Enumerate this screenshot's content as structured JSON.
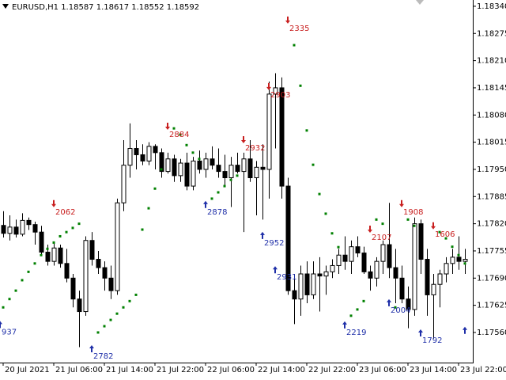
{
  "chart_data": {
    "type": "candlestick",
    "title": "EURUSD,H1 1.18587 1.18617 1.18552 1.18592",
    "up_color": "#ffffff",
    "down_color": "#000000",
    "sar_color": "#008000",
    "sell_color": "#c81e1e",
    "buy_color": "#1f2fa8",
    "xlim": [
      -0.5,
      74.25
    ],
    "xticks": [
      {
        "value": 0,
        "label": "20 Jul 2021"
      },
      {
        "value": 8,
        "label": "21 Jul 06:00"
      },
      {
        "value": 16,
        "label": "21 Jul 14:00"
      },
      {
        "value": 24,
        "label": "21 Jul 22:00"
      },
      {
        "value": 32,
        "label": "22 Jul 06:00"
      },
      {
        "value": 40,
        "label": "22 Jul 14:00"
      },
      {
        "value": 48,
        "label": "22 Jul 22:00"
      },
      {
        "value": 56,
        "label": "23 Jul 06:00"
      },
      {
        "value": 64,
        "label": "23 Jul 14:00"
      },
      {
        "value": 72,
        "label": "23 Jul 22:00"
      }
    ],
    "ylim": [
      1.17488,
      1.18355
    ],
    "yticks": [
      {
        "value": 1.1834,
        "label": "1.18340"
      },
      {
        "value": 1.18275,
        "label": "1.18275"
      },
      {
        "value": 1.1821,
        "label": "1.18210"
      },
      {
        "value": 1.18145,
        "label": "1.18145"
      },
      {
        "value": 1.1808,
        "label": "1.18080"
      },
      {
        "value": 1.18015,
        "label": "1.18015"
      },
      {
        "value": 1.1795,
        "label": "1.17950"
      },
      {
        "value": 1.17885,
        "label": "1.17885"
      },
      {
        "value": 1.1782,
        "label": "1.17820"
      },
      {
        "value": 1.17755,
        "label": "1.17755"
      },
      {
        "value": 1.1769,
        "label": "1.17690"
      },
      {
        "value": 1.17625,
        "label": "1.17625"
      },
      {
        "value": 1.1756,
        "label": "1.17560"
      }
    ],
    "open": [
      1.17816,
      1.17797,
      1.17812,
      1.17795,
      1.17828,
      1.17818,
      1.178,
      1.17752,
      1.1773,
      1.17762,
      1.17725,
      1.1769,
      1.1764,
      1.1761,
      1.1778,
      1.17735,
      1.17715,
      1.1769,
      1.1766,
      1.1787,
      1.1796,
      1.18,
      1.17985,
      1.1797,
      1.18005,
      1.1799,
      1.17945,
      1.17975,
      1.17935,
      1.17965,
      1.1791,
      1.1797,
      1.1795,
      1.17975,
      1.1796,
      1.17945,
      1.1793,
      1.1796,
      1.17945,
      1.17975,
      1.1793,
      1.17955,
      1.1795,
      1.1813,
      1.18145,
      1.1791,
      1.1766,
      1.1764,
      1.177,
      1.1765,
      1.177,
      1.17695,
      1.17705,
      1.1772,
      1.17745,
      1.1773,
      1.17765,
      1.1775,
      1.17705,
      1.1769,
      1.1773,
      1.1777,
      1.17715,
      1.1769,
      1.1764,
      1.17615,
      1.1782,
      1.17735,
      1.1765,
      1.17675,
      1.177,
      1.17725,
      1.1774,
      1.1773
    ],
    "high": [
      1.1785,
      1.1784,
      1.1783,
      1.17845,
      1.17835,
      1.17825,
      1.17815,
      1.1777,
      1.17775,
      1.1777,
      1.1776,
      1.177,
      1.1766,
      1.1779,
      1.178,
      1.17755,
      1.1773,
      1.1772,
      1.1788,
      1.1802,
      1.1806,
      1.1802,
      1.1801,
      1.18015,
      1.1801,
      1.18,
      1.1799,
      1.17985,
      1.17975,
      1.1799,
      1.1798,
      1.17995,
      1.1799,
      1.18005,
      1.18,
      1.17985,
      1.1798,
      1.1799,
      1.1799,
      1.1802,
      1.1797,
      1.1801,
      1.1816,
      1.1818,
      1.1817,
      1.1793,
      1.177,
      1.1772,
      1.1773,
      1.1773,
      1.1774,
      1.1772,
      1.17735,
      1.1776,
      1.1779,
      1.1778,
      1.1779,
      1.17765,
      1.1772,
      1.1774,
      1.1778,
      1.1787,
      1.1776,
      1.1772,
      1.1767,
      1.17835,
      1.1783,
      1.1776,
      1.177,
      1.1771,
      1.1774,
      1.1776,
      1.1779,
      1.1776
    ],
    "low": [
      1.17787,
      1.1778,
      1.17787,
      1.1779,
      1.17805,
      1.1777,
      1.17745,
      1.1772,
      1.1772,
      1.17715,
      1.1768,
      1.1762,
      1.17525,
      1.176,
      1.1772,
      1.177,
      1.1766,
      1.1764,
      1.1765,
      1.1785,
      1.1793,
      1.1795,
      1.1796,
      1.1796,
      1.1795,
      1.1793,
      1.1794,
      1.1792,
      1.1792,
      1.179,
      1.179,
      1.1794,
      1.1793,
      1.1795,
      1.1793,
      1.1791,
      1.1786,
      1.1794,
      1.178,
      1.1792,
      1.1784,
      1.1783,
      1.1788,
      1.18,
      1.1788,
      1.1765,
      1.1758,
      1.176,
      1.1763,
      1.1764,
      1.1761,
      1.1765,
      1.1769,
      1.177,
      1.1771,
      1.177,
      1.1774,
      1.177,
      1.1766,
      1.1767,
      1.177,
      1.1769,
      1.1763,
      1.1763,
      1.1757,
      1.176,
      1.177,
      1.176,
      1.17545,
      1.1762,
      1.1768,
      1.177,
      1.1771,
      1.177
    ],
    "close": [
      1.17797,
      1.17812,
      1.17795,
      1.17828,
      1.17818,
      1.178,
      1.17752,
      1.1773,
      1.17762,
      1.17725,
      1.1769,
      1.1764,
      1.1761,
      1.1778,
      1.17735,
      1.17715,
      1.1769,
      1.1766,
      1.1787,
      1.1796,
      1.18,
      1.17985,
      1.1797,
      1.18005,
      1.1799,
      1.17945,
      1.17975,
      1.17935,
      1.17965,
      1.1791,
      1.1797,
      1.1795,
      1.17975,
      1.1796,
      1.17945,
      1.1793,
      1.1796,
      1.17945,
      1.17975,
      1.1793,
      1.17955,
      1.1795,
      1.1813,
      1.18145,
      1.1791,
      1.1766,
      1.1764,
      1.177,
      1.1765,
      1.177,
      1.17695,
      1.17705,
      1.1772,
      1.17745,
      1.1773,
      1.17765,
      1.1775,
      1.17705,
      1.1769,
      1.1773,
      1.1777,
      1.17715,
      1.1769,
      1.1764,
      1.17615,
      1.1782,
      1.17735,
      1.1765,
      1.17675,
      1.177,
      1.17725,
      1.1774,
      1.1773,
      1.17735
    ],
    "sar": [
      1.1762,
      1.1764,
      1.1766,
      1.17685,
      1.17705,
      1.17725,
      1.17745,
      1.1776,
      1.17775,
      1.1779,
      1.178,
      1.1781,
      1.1782,
      null,
      null,
      1.1756,
      1.17575,
      1.1759,
      1.17605,
      1.1762,
      1.17635,
      1.1765,
      1.17806,
      1.17857,
      1.17904,
      1.1795,
      null,
      1.18048,
      1.18033,
      1.18008,
      1.1799,
      1.17975,
      null,
      1.1788,
      1.17895,
      1.1791,
      1.17925,
      1.17935,
      null,
      null,
      null,
      null,
      null,
      null,
      null,
      null,
      1.18247,
      1.1815,
      1.18043,
      1.17961,
      1.17891,
      1.17844,
      1.17797,
      1.17764,
      null,
      1.176,
      1.17615,
      1.17635,
      null,
      1.1783,
      1.1782,
      null,
      1.1762,
      null,
      1.1783,
      1.17815,
      null,
      null,
      null,
      1.178,
      1.17785,
      1.17765,
      1.17745,
      1.17725
    ],
    "signals": [
      {
        "x": -0.5,
        "price": 1.1758,
        "direction": "buy",
        "label": "937"
      },
      {
        "x": 8,
        "price": 1.17867,
        "direction": "sell",
        "label": "2062"
      },
      {
        "x": 14,
        "price": 1.17522,
        "direction": "buy",
        "label": "2782"
      },
      {
        "x": 26,
        "price": 1.18052,
        "direction": "sell",
        "label": "2884"
      },
      {
        "x": 32,
        "price": 1.17867,
        "direction": "buy",
        "label": "2878"
      },
      {
        "x": 38,
        "price": 1.1802,
        "direction": "sell",
        "label": "2932"
      },
      {
        "x": 41,
        "price": 1.17793,
        "direction": "buy",
        "label": "2952"
      },
      {
        "x": 42,
        "price": 1.18147,
        "direction": "sell",
        "label": "2903"
      },
      {
        "x": 43,
        "price": 1.17711,
        "direction": "buy",
        "label": "2931"
      },
      {
        "x": 45,
        "price": 1.18306,
        "direction": "sell",
        "label": "2335"
      },
      {
        "x": 54,
        "price": 1.17579,
        "direction": "buy",
        "label": "2219"
      },
      {
        "x": 58,
        "price": 1.17806,
        "direction": "sell",
        "label": "2107"
      },
      {
        "x": 61,
        "price": 1.17632,
        "direction": "buy",
        "label": "2004"
      },
      {
        "x": 63,
        "price": 1.17867,
        "direction": "sell",
        "label": "1908"
      },
      {
        "x": 66,
        "price": 1.1756,
        "direction": "buy",
        "label": "1792"
      },
      {
        "x": 68,
        "price": 1.17814,
        "direction": "sell",
        "label": "1606"
      },
      {
        "x": 73,
        "price": 1.17566,
        "direction": "buy"
      }
    ]
  }
}
